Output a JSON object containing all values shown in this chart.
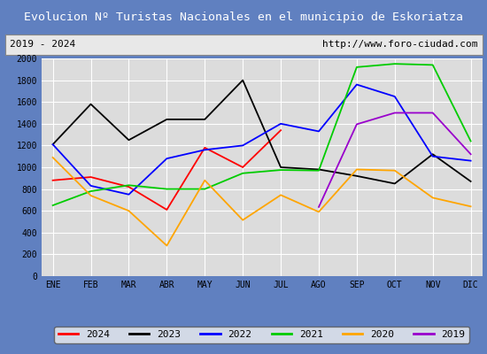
{
  "title": "Evolucion Nº Turistas Nacionales en el municipio de Eskoriatza",
  "title_color": "#ffffff",
  "title_bg_color": "#4472c4",
  "subtitle_left": "2019 - 2024",
  "subtitle_right": "http://www.foro-ciudad.com",
  "months": [
    "ENE",
    "FEB",
    "MAR",
    "ABR",
    "MAY",
    "JUN",
    "JUL",
    "AGO",
    "SEP",
    "OCT",
    "NOV",
    "DIC"
  ],
  "ylim": [
    0,
    2000
  ],
  "yticks": [
    0,
    200,
    400,
    600,
    800,
    1000,
    1200,
    1400,
    1600,
    1800,
    2000
  ],
  "series": {
    "2024": {
      "color": "#ff0000",
      "data": [
        880,
        910,
        820,
        610,
        1180,
        1000,
        1340,
        null,
        null,
        null,
        null,
        null
      ]
    },
    "2023": {
      "color": "#000000",
      "data": [
        1210,
        1580,
        1250,
        1440,
        1440,
        1800,
        1000,
        980,
        920,
        850,
        1120,
        870
      ]
    },
    "2022": {
      "color": "#0000ff",
      "data": [
        1210,
        830,
        750,
        1080,
        1160,
        1200,
        1400,
        1330,
        1760,
        1650,
        1100,
        1060
      ]
    },
    "2021": {
      "color": "#00cc00",
      "data": [
        650,
        780,
        835,
        800,
        800,
        945,
        975,
        970,
        1920,
        1950,
        1940,
        1240
      ]
    },
    "2020": {
      "color": "#ffa500",
      "data": [
        1090,
        740,
        600,
        280,
        880,
        515,
        745,
        590,
        980,
        970,
        720,
        640
      ]
    },
    "2019": {
      "color": "#9900cc",
      "data": [
        null,
        null,
        null,
        null,
        null,
        null,
        null,
        635,
        1395,
        1500,
        1500,
        1120
      ]
    }
  },
  "legend_order": [
    "2024",
    "2023",
    "2022",
    "2021",
    "2020",
    "2019"
  ],
  "outer_bg_color": "#6080c0",
  "plot_bg_color": "#dcdcdc",
  "grid_color": "#ffffff",
  "subtitle_bg": "#e8e8e8",
  "subtitle_border": "#888888"
}
